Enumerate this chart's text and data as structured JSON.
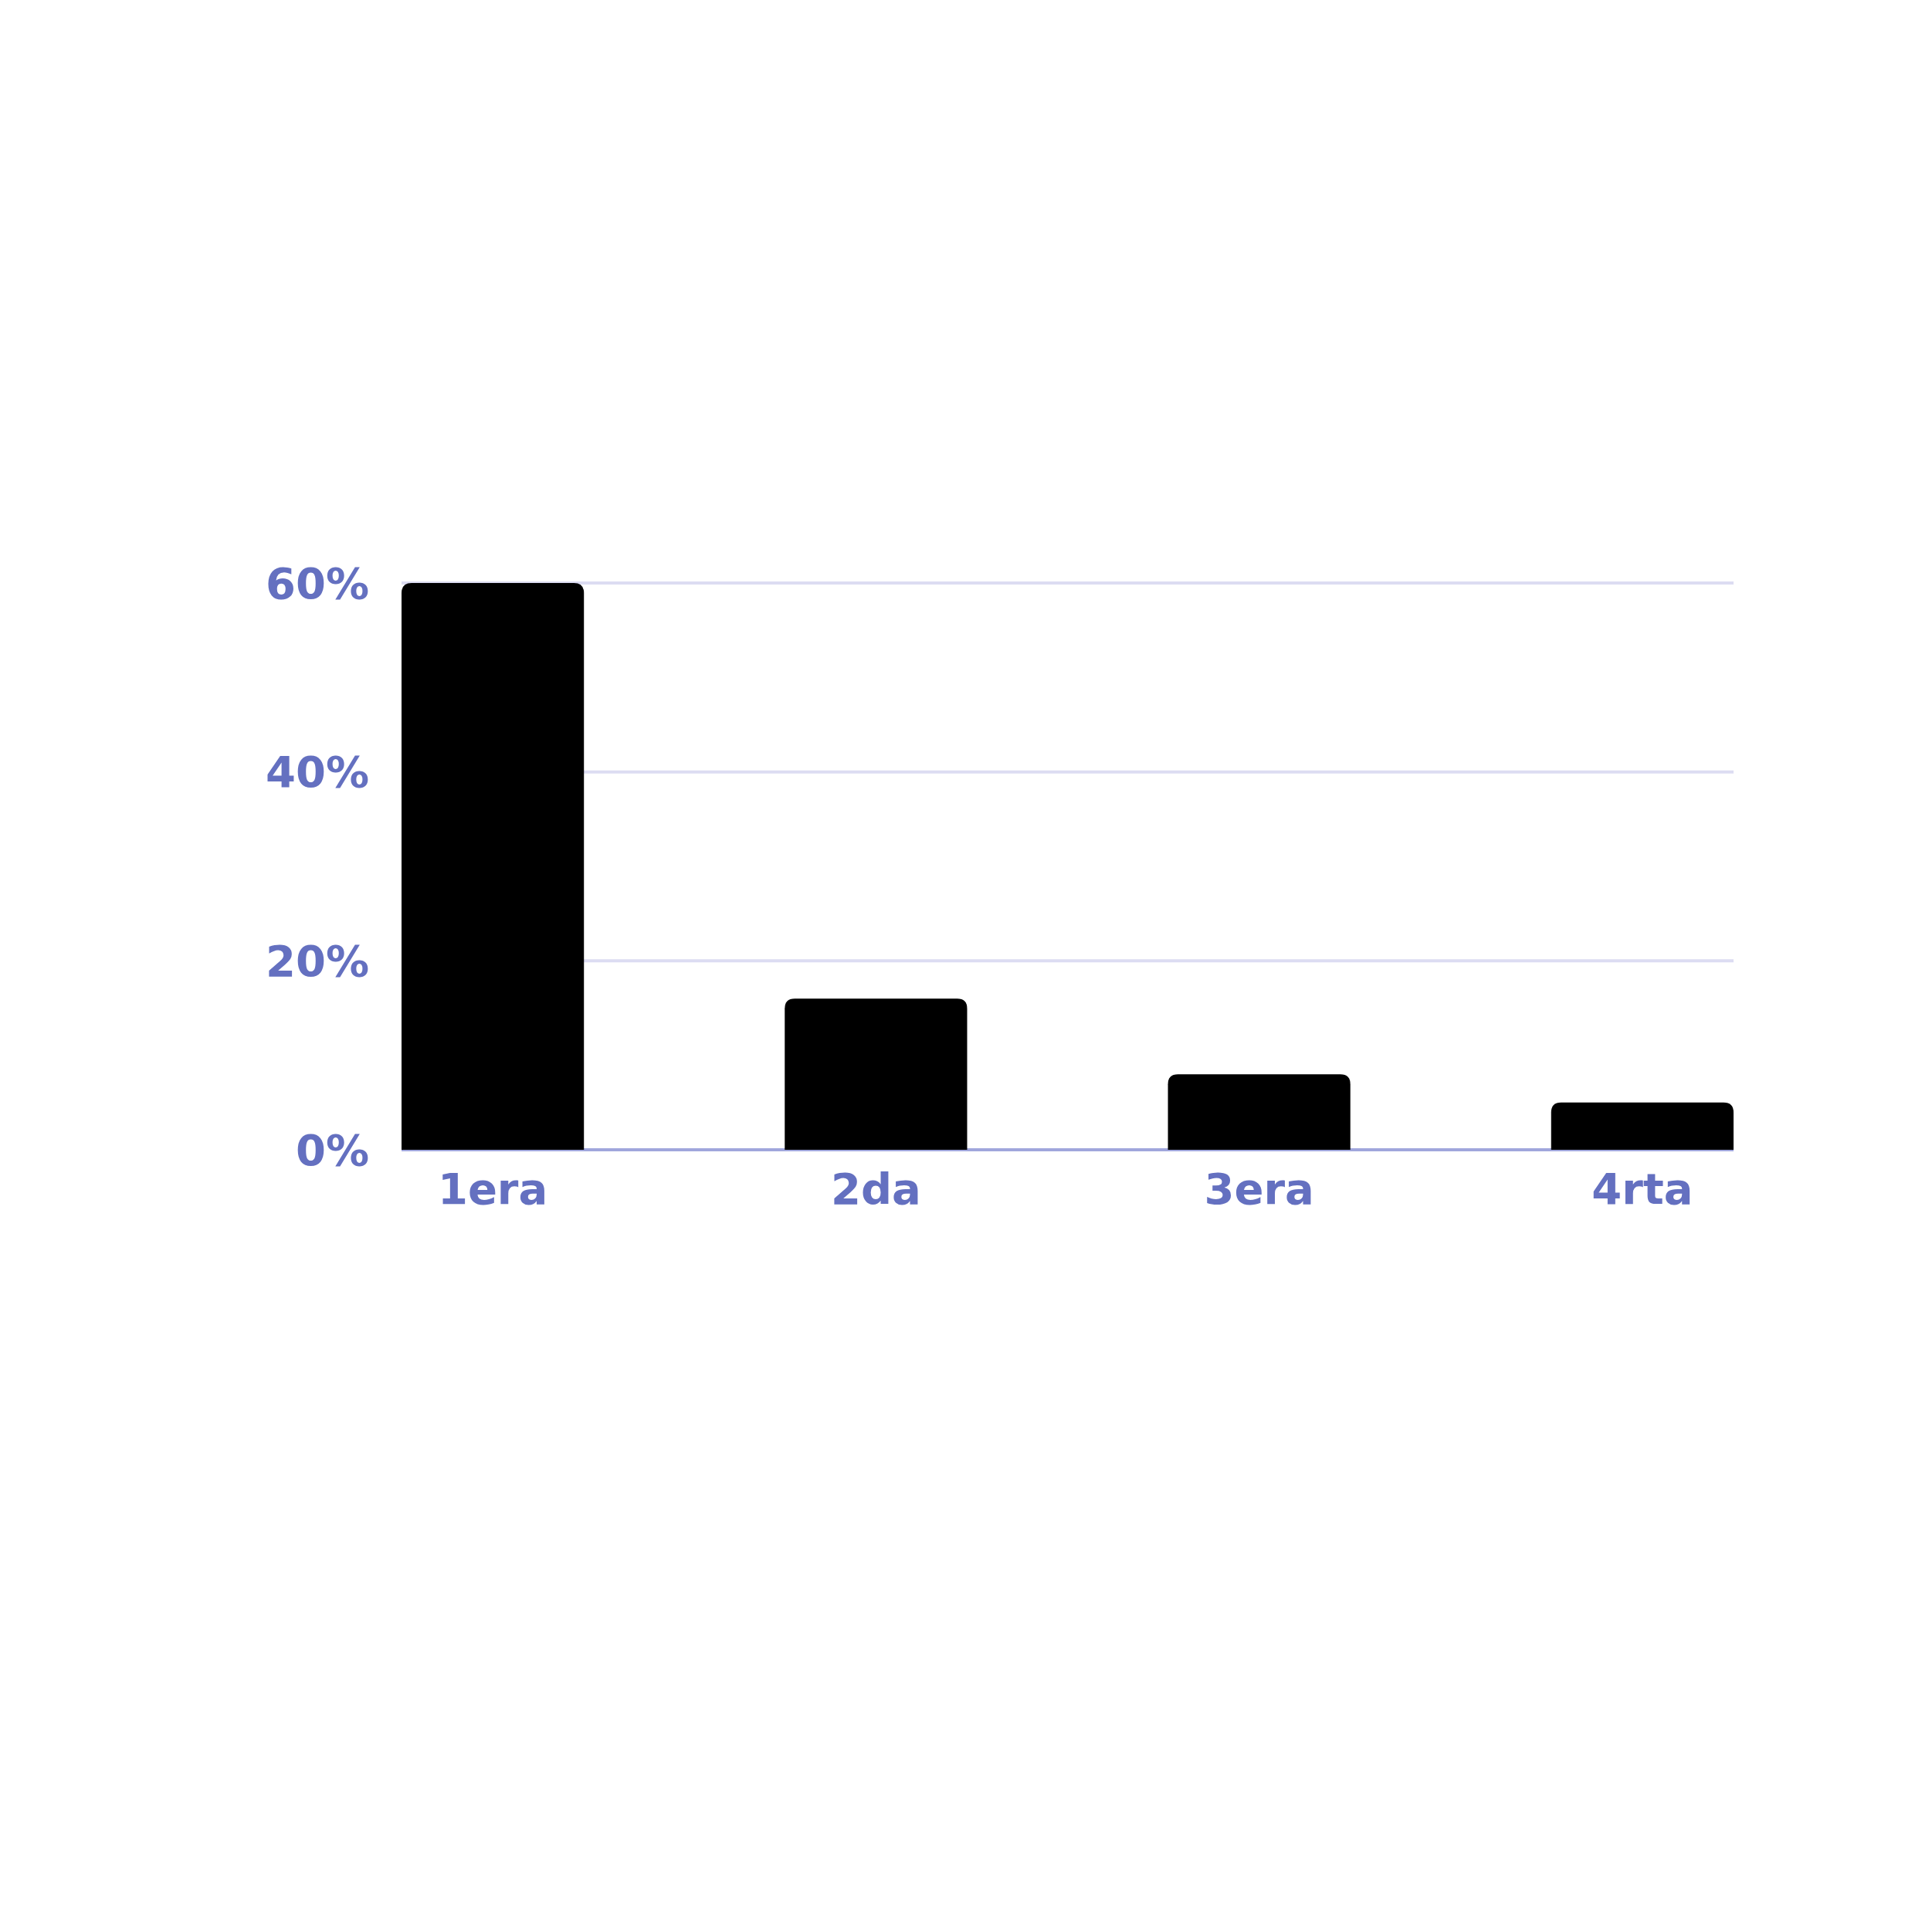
{
  "chart_data": {
    "type": "bar",
    "categories": [
      "1era",
      "2da",
      "3era",
      "4rta"
    ],
    "values": [
      60,
      16,
      8,
      5
    ],
    "color": "#000000",
    "ylim": [
      0,
      60
    ],
    "yticks": [
      {
        "value": 0,
        "label": "0%"
      },
      {
        "value": 20,
        "label": "20%"
      },
      {
        "value": 40,
        "label": "40%"
      },
      {
        "value": 60,
        "label": "60%"
      }
    ],
    "grid": "y"
  }
}
